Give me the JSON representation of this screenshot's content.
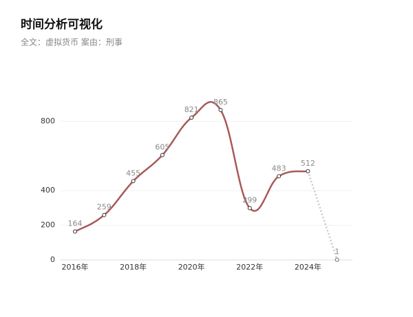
{
  "chart_data": {
    "type": "line",
    "title": "时间分析可视化",
    "subtitle": "全文：虚拟货币  案由：刑事",
    "categories": [
      "2016年",
      null,
      "2018年",
      null,
      "2020年",
      null,
      "2022年",
      null,
      "2024年",
      null
    ],
    "values": [
      164,
      259,
      455,
      605,
      821,
      865,
      299,
      483,
      512,
      1
    ],
    "color": "#a8585a",
    "tail_color": "#c8c8c8",
    "dashed_tail": true,
    "ylim": [
      0,
      1000
    ],
    "yticks": [
      0,
      200,
      400,
      800
    ],
    "grid": true
  }
}
